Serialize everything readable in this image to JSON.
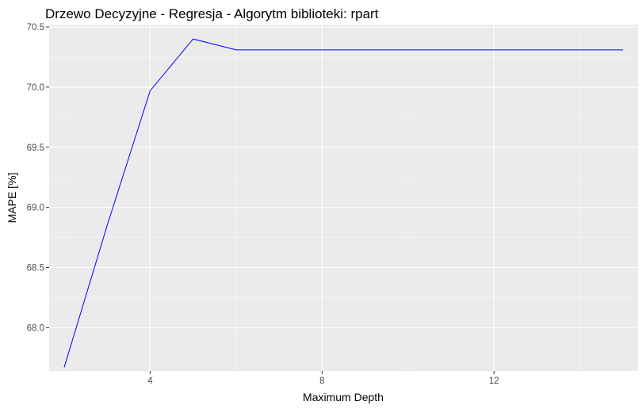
{
  "chart_data": {
    "type": "line",
    "title": "Drzewo Decyzyjne - Regresja - Algorytm biblioteki: rpart",
    "xlabel": "Maximum Depth",
    "ylabel": "MAPE [%]",
    "xlim": [
      1.65,
      15.35
    ],
    "ylim": [
      67.64,
      70.52
    ],
    "x_ticks": [
      4,
      8,
      12
    ],
    "x_tick_labels": [
      "4",
      "8",
      "12"
    ],
    "x_minor_ticks": [
      2,
      6,
      10,
      14
    ],
    "y_ticks": [
      68.0,
      68.5,
      69.0,
      69.5,
      70.0,
      70.5
    ],
    "y_tick_labels": [
      "68.0",
      "68.5",
      "69.0",
      "69.5",
      "70.0",
      "70.5"
    ],
    "y_minor_ticks": [
      68.25,
      68.75,
      69.25,
      69.75,
      70.25
    ],
    "grid": true,
    "legend": "none",
    "colors": {
      "panel_background": "#ebebeb",
      "grid_major": "#ffffff",
      "grid_minor": "#f7f7f7",
      "line": "#0000ff",
      "tick_mark": "#333333"
    },
    "series": [
      {
        "x": [
          2,
          3,
          4,
          5,
          6,
          7,
          8,
          9,
          10,
          11,
          12,
          13,
          14,
          15
        ],
        "values": [
          67.67,
          68.85,
          69.97,
          70.4,
          70.31,
          70.31,
          70.31,
          70.31,
          70.31,
          70.31,
          70.31,
          70.31,
          70.31,
          70.31
        ]
      }
    ]
  }
}
